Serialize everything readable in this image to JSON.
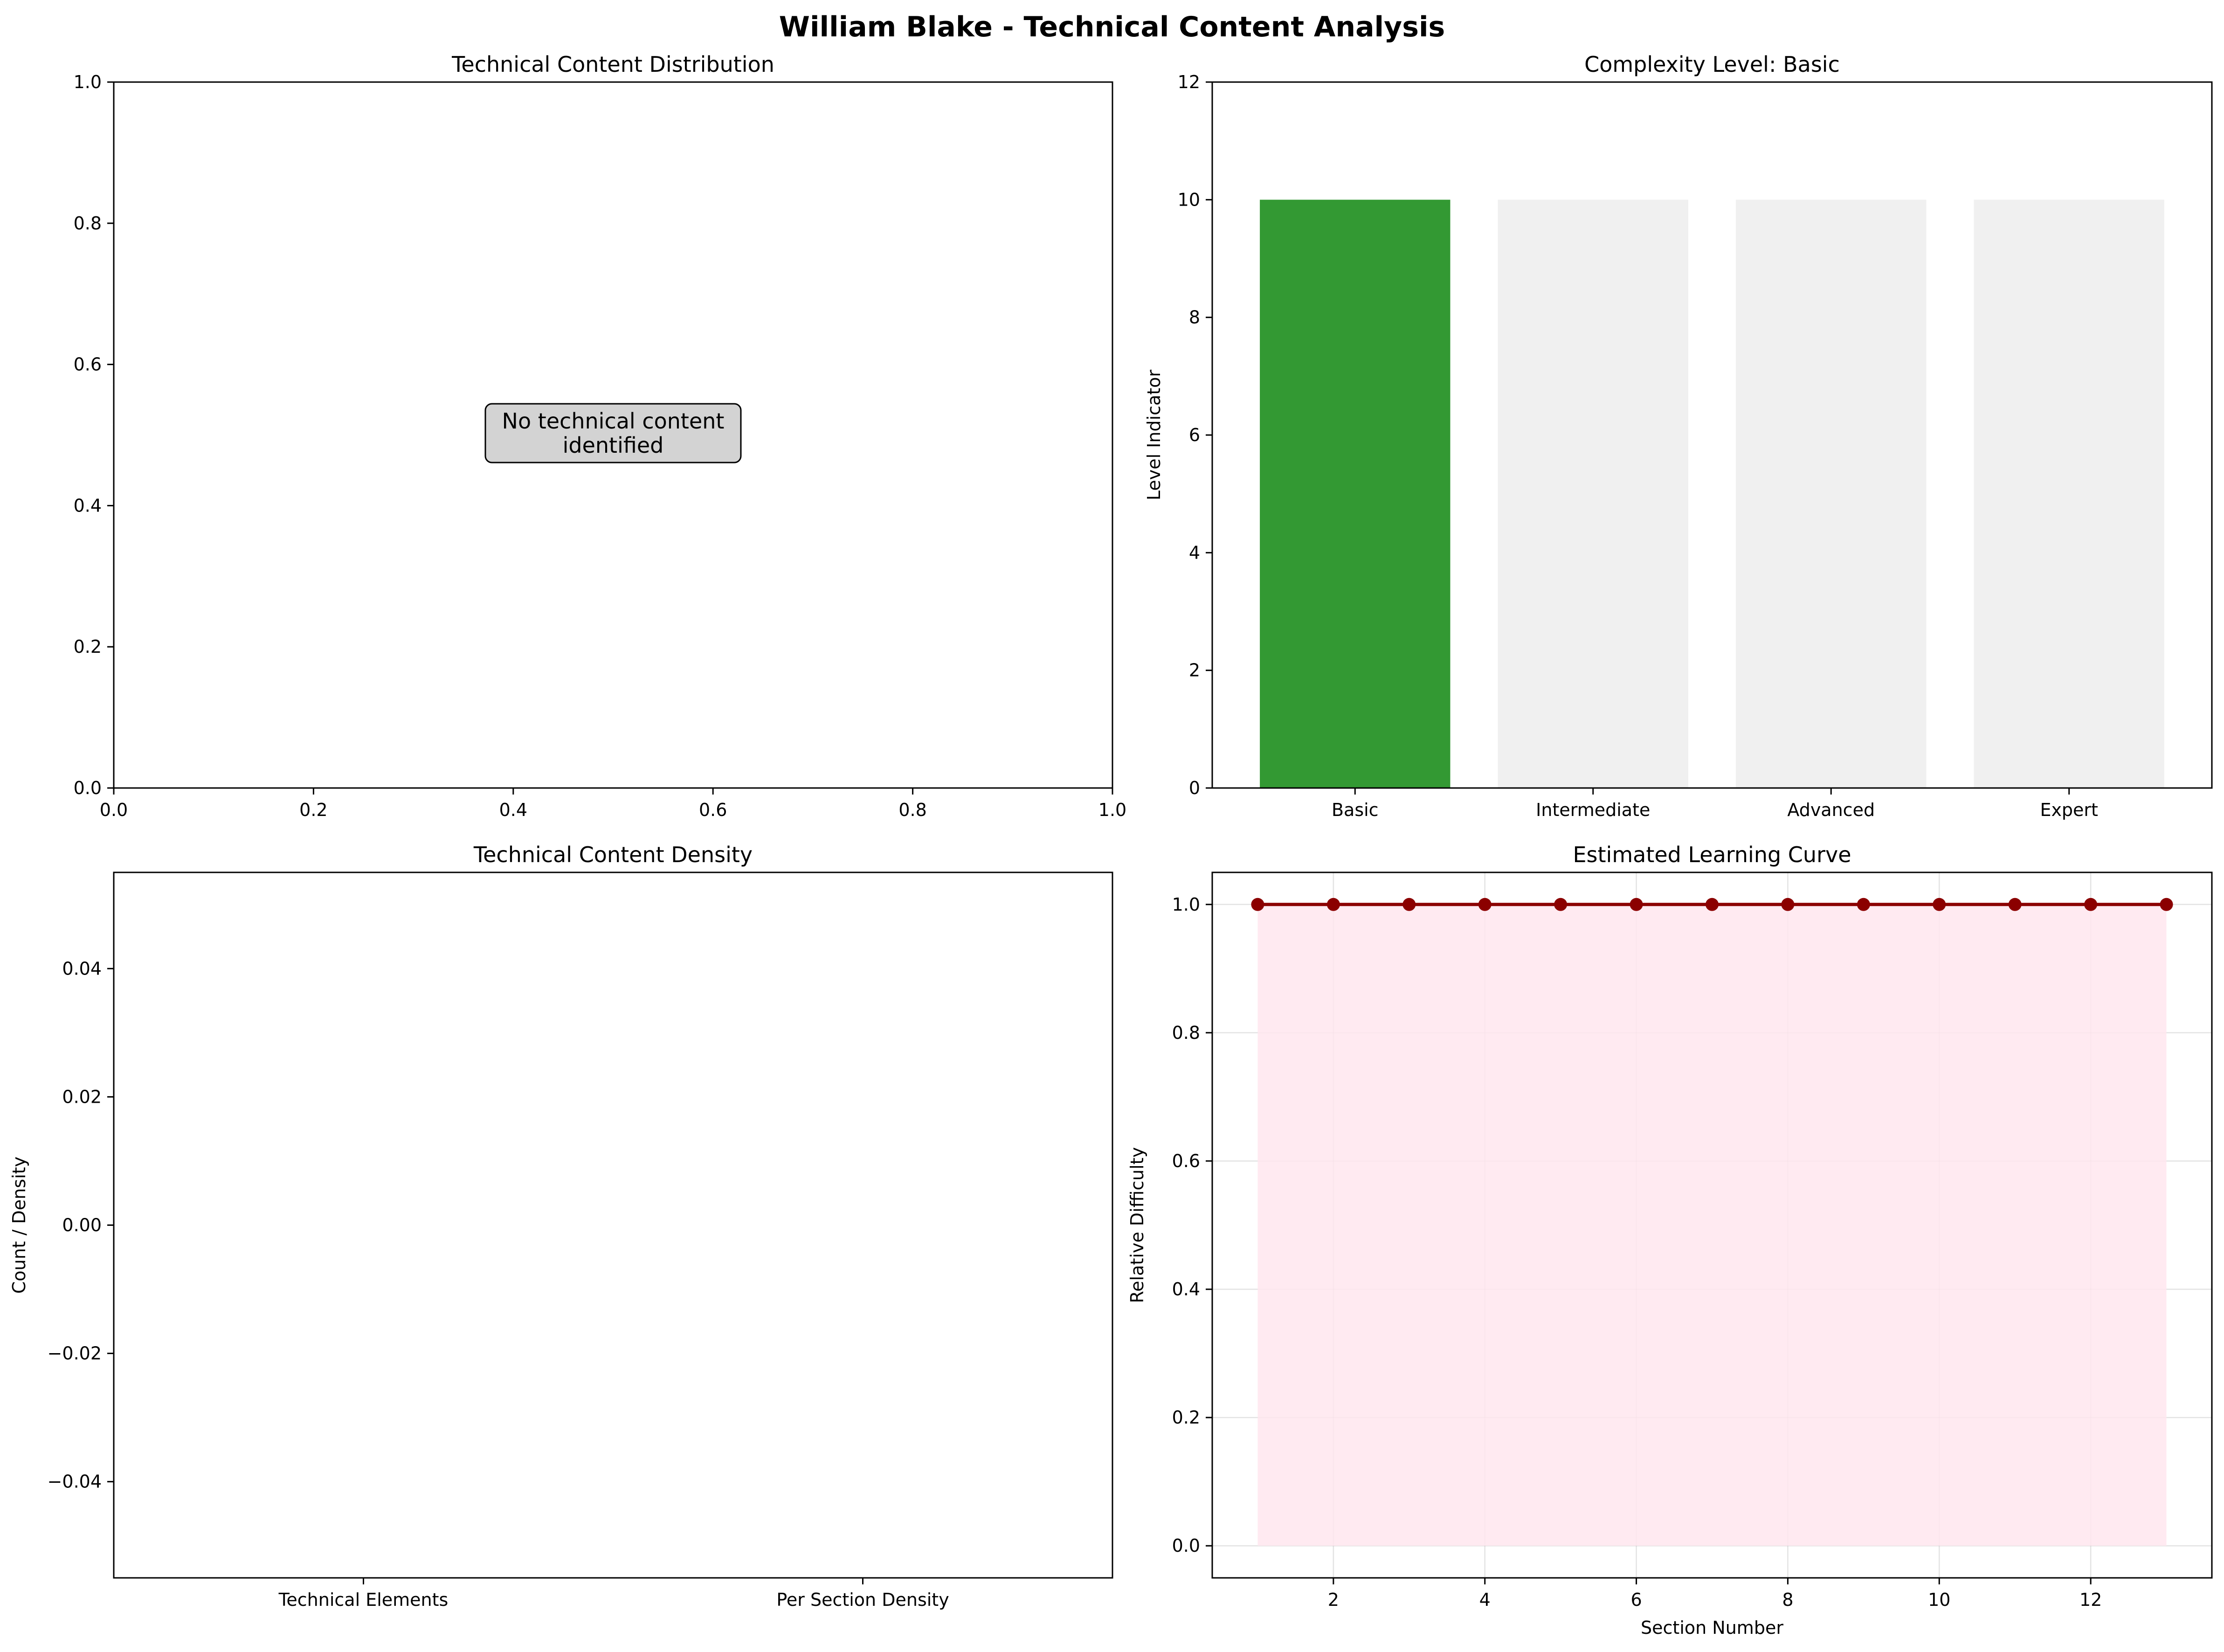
{
  "figure": {
    "title": "William Blake - Technical Content Analysis"
  },
  "colors": {
    "complexity_active": "#339933",
    "complexity_inactive": "#f0f0f0",
    "curve_line": "#8b0000",
    "curve_fill": "#ffe6ee",
    "note_box": "#d3d3d3"
  },
  "chart_data": [
    {
      "type": "pie",
      "title": "Technical Content Distribution",
      "values": [],
      "annotation": "No technical content\nidentified",
      "xlim": [
        0,
        1
      ],
      "ylim": [
        0,
        1
      ],
      "xticks": [
        "0.0",
        "0.2",
        "0.4",
        "0.6",
        "0.8",
        "1.0"
      ],
      "yticks": [
        "0.0",
        "0.2",
        "0.4",
        "0.6",
        "0.8",
        "1.0"
      ]
    },
    {
      "type": "bar",
      "title": "Complexity Level: Basic",
      "categories": [
        "Basic",
        "Intermediate",
        "Advanced",
        "Expert"
      ],
      "values": [
        10,
        10,
        10,
        10
      ],
      "active": [
        true,
        false,
        false,
        false
      ],
      "ylabel": "Level Indicator",
      "ylim": [
        0,
        12
      ],
      "yticks": [
        0,
        2,
        4,
        6,
        8,
        10,
        12
      ]
    },
    {
      "type": "bar",
      "title": "Technical Content Density",
      "categories": [
        "Technical Elements",
        "Per Section Density"
      ],
      "values": [
        0,
        0
      ],
      "ylabel": "Count / Density",
      "ylim": [
        -0.055,
        0.055
      ],
      "yticks": [
        "−0.04",
        "−0.02",
        "0.00",
        "0.02",
        "0.04"
      ]
    },
    {
      "type": "area",
      "title": "Estimated Learning Curve",
      "x": [
        1,
        2,
        3,
        4,
        5,
        6,
        7,
        8,
        9,
        10,
        11,
        12,
        13
      ],
      "y": [
        1,
        1,
        1,
        1,
        1,
        1,
        1,
        1,
        1,
        1,
        1,
        1,
        1
      ],
      "xlabel": "Section Number",
      "ylabel": "Relative Difficulty",
      "xlim": [
        0.4,
        13.6
      ],
      "ylim": [
        -0.05,
        1.05
      ],
      "xticks": [
        2,
        4,
        6,
        8,
        10,
        12
      ],
      "yticks": [
        "0.0",
        "0.2",
        "0.4",
        "0.6",
        "0.8",
        "1.0"
      ],
      "grid": true
    }
  ]
}
